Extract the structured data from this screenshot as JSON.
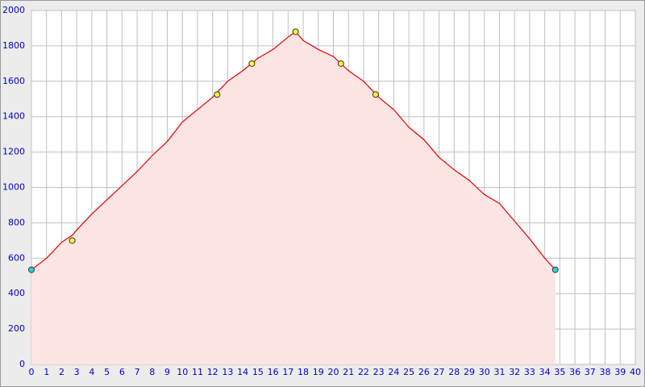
{
  "chart_data": {
    "type": "area",
    "x": [
      0,
      1,
      2,
      2.7,
      3,
      4,
      5,
      6,
      7,
      8,
      9,
      10,
      11,
      12,
      13,
      14,
      15,
      16,
      17,
      17.5,
      18,
      19,
      20,
      21,
      22,
      23,
      24,
      25,
      26,
      27,
      28,
      29,
      30,
      31,
      32,
      33,
      34,
      34.7
    ],
    "values": [
      535,
      600,
      690,
      730,
      760,
      850,
      930,
      1010,
      1090,
      1180,
      1260,
      1370,
      1440,
      1510,
      1600,
      1660,
      1730,
      1780,
      1850,
      1880,
      1830,
      1780,
      1740,
      1660,
      1600,
      1510,
      1440,
      1340,
      1270,
      1170,
      1100,
      1040,
      960,
      910,
      810,
      710,
      600,
      535
    ],
    "color": "#e00000",
    "fill": "#ffe4e4",
    "markers": {
      "x": [
        0,
        2.7,
        12.3,
        14.6,
        17.5,
        20.5,
        22.8,
        34.7
      ],
      "y": [
        535,
        700,
        1525,
        1700,
        1880,
        1700,
        1525,
        535
      ],
      "colors": [
        "#33ccdd",
        "#ffff33",
        "#ffff33",
        "#ffff33",
        "#ffff33",
        "#ffff33",
        "#ffff33",
        "#33ccdd"
      ]
    },
    "xlim": [
      0,
      40
    ],
    "ylim": [
      0,
      2000
    ],
    "xticks": [
      0,
      1,
      2,
      3,
      4,
      5,
      6,
      7,
      8,
      9,
      10,
      11,
      12,
      13,
      14,
      15,
      16,
      17,
      18,
      19,
      20,
      21,
      22,
      23,
      24,
      25,
      26,
      27,
      28,
      29,
      30,
      31,
      32,
      33,
      34,
      35,
      36,
      37,
      38,
      39,
      40
    ],
    "yticks": [
      0,
      200,
      400,
      600,
      800,
      1000,
      1200,
      1400,
      1600,
      1800,
      2000
    ],
    "grid": true
  }
}
